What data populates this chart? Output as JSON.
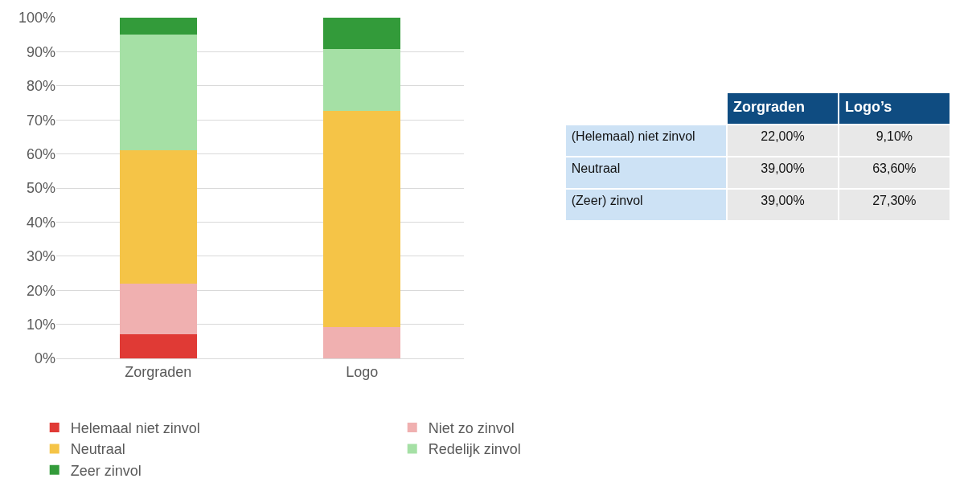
{
  "chart_data": [
    {
      "type": "bar",
      "stacked": true,
      "categories": [
        "Zorgraden",
        "Logo"
      ],
      "series": [
        {
          "name": "Helemaal niet zinvol",
          "color": "#e03a35",
          "values": [
            7,
            0
          ]
        },
        {
          "name": "Niet zo zinvol",
          "color": "#f0b0b0",
          "values": [
            15,
            9.1
          ]
        },
        {
          "name": "Neutraal",
          "color": "#f5c447",
          "values": [
            39,
            63.6
          ]
        },
        {
          "name": "Redelijk zinvol",
          "color": "#a5e0a5",
          "values": [
            34,
            18.2
          ]
        },
        {
          "name": "Zeer zinvol",
          "color": "#339b3a",
          "values": [
            5,
            9.1
          ]
        }
      ],
      "ylim": [
        0,
        100
      ],
      "yticks": [
        {
          "value": 0,
          "label": "0%"
        },
        {
          "value": 10,
          "label": "10%"
        },
        {
          "value": 20,
          "label": "20%"
        },
        {
          "value": 30,
          "label": "30%"
        },
        {
          "value": 40,
          "label": "40%"
        },
        {
          "value": 50,
          "label": "50%"
        },
        {
          "value": 60,
          "label": "60%"
        },
        {
          "value": 70,
          "label": "70%"
        },
        {
          "value": 80,
          "label": "80%"
        },
        {
          "value": 90,
          "label": "90%"
        },
        {
          "value": 100,
          "label": "100%"
        }
      ],
      "grid": "y",
      "legend": "bottom"
    },
    {
      "type": "other",
      "categories": [
        "Zorgraden",
        "Logo’s"
      ],
      "y_categories": [
        "(Helemaal) niet zinvol",
        "Neutraal",
        "(Zeer) zinvol"
      ],
      "cell_labels": [
        [
          "22,00%",
          "9,10%"
        ],
        [
          "39,00%",
          "63,60%"
        ],
        [
          "39,00%",
          "27,30%"
        ]
      ]
    }
  ]
}
